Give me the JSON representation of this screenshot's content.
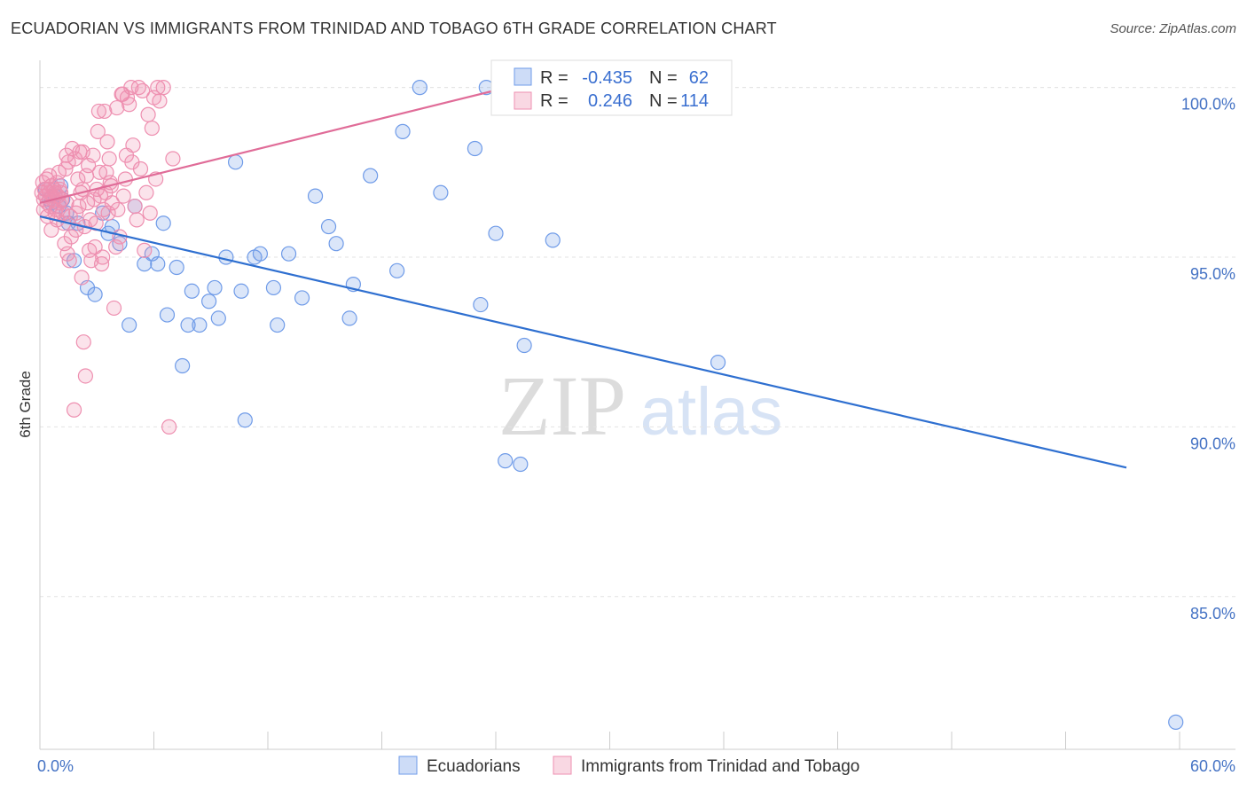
{
  "header": {
    "title": "ECUADORIAN VS IMMIGRANTS FROM TRINIDAD AND TOBAGO 6TH GRADE CORRELATION CHART",
    "source": "Source: ZipAtlas.com"
  },
  "watermark": {
    "zip": "ZIP",
    "atlas": "atlas"
  },
  "legend": {
    "r_label": "R =",
    "n_label": "N =",
    "rows": [
      {
        "r": "-0.435",
        "n": "62",
        "color": "#6f9be8"
      },
      {
        "r": "0.246",
        "n": "114",
        "color": "#ee8fb0"
      }
    ]
  },
  "chart_data": {
    "type": "scatter",
    "title": "ECUADORIAN VS IMMIGRANTS FROM TRINIDAD AND TOBAGO 6TH GRADE CORRELATION CHART",
    "xlabel": "",
    "ylabel": "6th Grade",
    "xlim": [
      0,
      60
    ],
    "ylim": [
      80.5,
      100.8
    ],
    "x_tick_labels": [
      "0.0%",
      "60.0%"
    ],
    "y_ticks": [
      85,
      90,
      95,
      100
    ],
    "y_tick_labels": [
      "85.0%",
      "90.0%",
      "95.0%",
      "100.0%"
    ],
    "grid": true,
    "series": [
      {
        "name": "Ecuadorians",
        "color": "#6f9be8",
        "fill": "rgba(111,155,232,0.25)",
        "trend": {
          "x": [
            0,
            57.2
          ],
          "y": [
            96.2,
            88.8
          ],
          "color": "#2e6fd0"
        },
        "points": [
          [
            0.3,
            97.0
          ],
          [
            0.5,
            96.7
          ],
          [
            0.8,
            96.8
          ],
          [
            1.0,
            96.5
          ],
          [
            1.2,
            96.7
          ],
          [
            1.5,
            96.0
          ],
          [
            1.8,
            94.9
          ],
          [
            2.0,
            96.0
          ],
          [
            2.5,
            94.1
          ],
          [
            2.9,
            93.9
          ],
          [
            3.3,
            96.3
          ],
          [
            3.6,
            95.7
          ],
          [
            3.8,
            95.9
          ],
          [
            4.2,
            95.4
          ],
          [
            4.7,
            93.0
          ],
          [
            5.0,
            96.5
          ],
          [
            5.5,
            94.8
          ],
          [
            5.9,
            95.1
          ],
          [
            6.2,
            94.8
          ],
          [
            6.5,
            96.0
          ],
          [
            6.7,
            93.3
          ],
          [
            7.2,
            94.7
          ],
          [
            7.5,
            91.8
          ],
          [
            7.8,
            93.0
          ],
          [
            8.0,
            94.0
          ],
          [
            8.4,
            93.0
          ],
          [
            8.9,
            93.7
          ],
          [
            9.2,
            94.1
          ],
          [
            9.4,
            93.2
          ],
          [
            9.8,
            95.0
          ],
          [
            10.3,
            97.8
          ],
          [
            10.6,
            94.0
          ],
          [
            10.8,
            90.2
          ],
          [
            11.3,
            95.0
          ],
          [
            11.6,
            95.1
          ],
          [
            12.3,
            94.1
          ],
          [
            12.5,
            93.0
          ],
          [
            13.1,
            95.1
          ],
          [
            13.8,
            93.8
          ],
          [
            14.5,
            96.8
          ],
          [
            15.2,
            95.9
          ],
          [
            15.6,
            95.4
          ],
          [
            16.3,
            93.2
          ],
          [
            16.5,
            94.2
          ],
          [
            17.4,
            97.4
          ],
          [
            18.8,
            94.6
          ],
          [
            19.1,
            98.7
          ],
          [
            20.0,
            100.0
          ],
          [
            21.1,
            96.9
          ],
          [
            22.9,
            98.2
          ],
          [
            23.2,
            93.6
          ],
          [
            23.5,
            100.0
          ],
          [
            24.0,
            95.7
          ],
          [
            24.5,
            89.0
          ],
          [
            25.3,
            88.9
          ],
          [
            25.5,
            92.4
          ],
          [
            27.0,
            95.5
          ],
          [
            35.7,
            91.9
          ],
          [
            59.8,
            81.3
          ],
          [
            0.6,
            96.6
          ],
          [
            1.1,
            97.1
          ],
          [
            1.4,
            96.3
          ]
        ]
      },
      {
        "name": "Immigrants from Trinidad and Tobago",
        "color": "#ee8fb0",
        "fill": "rgba(238,143,176,0.25)",
        "trend": {
          "x": [
            0,
            24.6
          ],
          "y": [
            96.6,
            100.0
          ],
          "color": "#e06c98"
        },
        "points": [
          [
            0.1,
            96.9
          ],
          [
            0.15,
            97.2
          ],
          [
            0.2,
            96.7
          ],
          [
            0.25,
            97.0
          ],
          [
            0.3,
            96.8
          ],
          [
            0.35,
            97.3
          ],
          [
            0.4,
            96.6
          ],
          [
            0.45,
            97.0
          ],
          [
            0.5,
            96.9
          ],
          [
            0.55,
            96.5
          ],
          [
            0.6,
            97.1
          ],
          [
            0.65,
            96.8
          ],
          [
            0.7,
            96.7
          ],
          [
            0.75,
            97.0
          ],
          [
            0.8,
            96.9
          ],
          [
            0.85,
            96.4
          ],
          [
            0.9,
            97.2
          ],
          [
            0.95,
            96.8
          ],
          [
            1.0,
            96.6
          ],
          [
            1.05,
            97.0
          ],
          [
            1.1,
            96.9
          ],
          [
            1.15,
            96.7
          ],
          [
            1.2,
            96.3
          ],
          [
            1.3,
            95.4
          ],
          [
            1.35,
            97.6
          ],
          [
            1.4,
            98.0
          ],
          [
            1.45,
            95.1
          ],
          [
            1.5,
            97.8
          ],
          [
            1.55,
            94.9
          ],
          [
            1.6,
            96.2
          ],
          [
            1.7,
            98.2
          ],
          [
            1.8,
            90.5
          ],
          [
            1.85,
            97.9
          ],
          [
            1.9,
            95.8
          ],
          [
            2.0,
            97.3
          ],
          [
            2.05,
            96.5
          ],
          [
            2.1,
            98.1
          ],
          [
            2.2,
            94.4
          ],
          [
            2.25,
            97.0
          ],
          [
            2.3,
            92.5
          ],
          [
            2.35,
            95.9
          ],
          [
            2.4,
            91.5
          ],
          [
            2.45,
            97.4
          ],
          [
            2.5,
            96.6
          ],
          [
            2.6,
            95.2
          ],
          [
            2.7,
            94.9
          ],
          [
            2.8,
            98.0
          ],
          [
            2.85,
            96.7
          ],
          [
            2.9,
            95.3
          ],
          [
            3.0,
            97.0
          ],
          [
            3.05,
            98.7
          ],
          [
            3.1,
            99.3
          ],
          [
            3.2,
            96.8
          ],
          [
            3.3,
            95.0
          ],
          [
            3.35,
            96.4
          ],
          [
            3.4,
            99.3
          ],
          [
            3.5,
            97.5
          ],
          [
            3.6,
            96.3
          ],
          [
            3.65,
            97.9
          ],
          [
            3.7,
            97.2
          ],
          [
            3.8,
            96.6
          ],
          [
            3.9,
            93.5
          ],
          [
            4.0,
            95.3
          ],
          [
            4.1,
            96.4
          ],
          [
            4.2,
            95.6
          ],
          [
            4.3,
            99.8
          ],
          [
            4.4,
            96.8
          ],
          [
            4.5,
            97.3
          ],
          [
            4.6,
            99.7
          ],
          [
            4.7,
            99.5
          ],
          [
            4.8,
            100.0
          ],
          [
            4.9,
            98.3
          ],
          [
            5.0,
            96.5
          ],
          [
            5.2,
            100.0
          ],
          [
            5.3,
            97.6
          ],
          [
            5.5,
            95.2
          ],
          [
            5.6,
            96.9
          ],
          [
            5.7,
            99.2
          ],
          [
            5.8,
            96.3
          ],
          [
            6.0,
            99.7
          ],
          [
            6.2,
            100.0
          ],
          [
            6.5,
            100.0
          ],
          [
            6.8,
            90.0
          ],
          [
            7.0,
            97.9
          ],
          [
            0.4,
            96.2
          ],
          [
            0.6,
            95.8
          ],
          [
            0.9,
            96.1
          ],
          [
            1.25,
            96.0
          ],
          [
            1.65,
            95.6
          ],
          [
            2.15,
            96.9
          ],
          [
            2.55,
            97.7
          ],
          [
            2.95,
            96.0
          ],
          [
            3.25,
            94.8
          ],
          [
            3.45,
            96.9
          ],
          [
            3.75,
            97.1
          ],
          [
            4.05,
            99.4
          ],
          [
            4.35,
            99.8
          ],
          [
            4.55,
            98.0
          ],
          [
            4.85,
            97.8
          ],
          [
            5.1,
            96.1
          ],
          [
            5.4,
            99.9
          ],
          [
            5.9,
            98.8
          ],
          [
            6.1,
            97.3
          ],
          [
            6.3,
            99.6
          ],
          [
            0.2,
            96.4
          ],
          [
            0.5,
            97.4
          ],
          [
            0.8,
            96.3
          ],
          [
            1.0,
            97.5
          ],
          [
            1.4,
            96.6
          ],
          [
            1.9,
            96.3
          ],
          [
            2.25,
            98.1
          ],
          [
            2.65,
            96.1
          ],
          [
            3.15,
            97.5
          ],
          [
            3.55,
            98.4
          ]
        ]
      }
    ]
  }
}
